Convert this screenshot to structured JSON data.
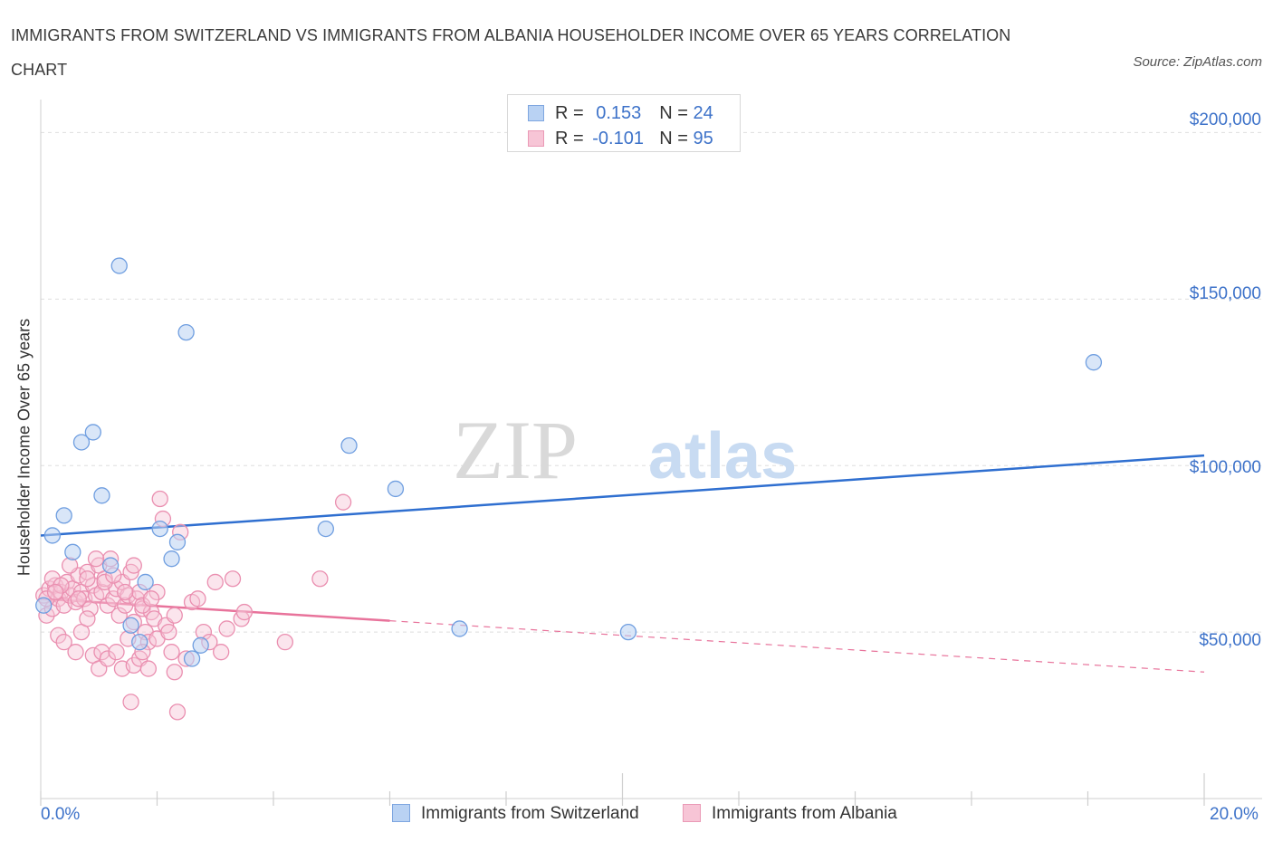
{
  "title": "IMMIGRANTS FROM SWITZERLAND VS IMMIGRANTS FROM ALBANIA HOUSEHOLDER INCOME OVER 65 YEARS CORRELATION CHART",
  "source": "Source: ZipAtlas.com",
  "watermark": {
    "zip": "ZIP",
    "atlas": "atlas"
  },
  "colors": {
    "blue": "#3d72c9",
    "blue_fill": "#b9d2f3",
    "blue_line": "#2f6fd0",
    "pink_line": "#e8739b",
    "pink_fill": "#f7c5d6",
    "grid": "#dddddd"
  },
  "legend": {
    "rows": [
      {
        "r_label": "R =",
        "r_value": "0.153",
        "n_label": "N =",
        "n_value": "24"
      },
      {
        "r_label": "R =",
        "r_value": "-0.101",
        "n_label": "N =",
        "n_value": "95"
      }
    ]
  },
  "bottom_legend": [
    "Immigrants from Switzerland",
    "Immigrants from Albania"
  ],
  "chart_data": {
    "type": "scatter",
    "title": "IMMIGRANTS FROM SWITZERLAND VS IMMIGRANTS FROM ALBANIA HOUSEHOLDER INCOME OVER 65 YEARS CORRELATION CHART",
    "xlabel": "",
    "ylabel": "Householder Income Over 65 years",
    "xlim": [
      0,
      20
    ],
    "ylim": [
      0,
      200000
    ],
    "x_tick_labels": [
      "0.0%",
      "20.0%"
    ],
    "y_ticks": [
      50000,
      100000,
      150000,
      200000
    ],
    "y_tick_labels": [
      "$50,000",
      "$100,000",
      "$150,000",
      "$200,000"
    ],
    "series": [
      {
        "name": "Immigrants from Switzerland",
        "points": [
          [
            0.05,
            58000
          ],
          [
            0.2,
            79000
          ],
          [
            0.4,
            85000
          ],
          [
            0.55,
            74000
          ],
          [
            0.7,
            107000
          ],
          [
            0.9,
            110000
          ],
          [
            1.05,
            91000
          ],
          [
            1.2,
            70000
          ],
          [
            1.35,
            160000
          ],
          [
            1.55,
            52000
          ],
          [
            1.7,
            47000
          ],
          [
            1.8,
            65000
          ],
          [
            2.05,
            81000
          ],
          [
            2.25,
            72000
          ],
          [
            2.35,
            77000
          ],
          [
            2.5,
            140000
          ],
          [
            2.6,
            42000
          ],
          [
            2.75,
            46000
          ],
          [
            4.9,
            81000
          ],
          [
            5.3,
            106000
          ],
          [
            6.1,
            93000
          ],
          [
            7.2,
            51000
          ],
          [
            10.1,
            50000
          ],
          [
            18.1,
            131000
          ]
        ],
        "trend": {
          "x": [
            0,
            20
          ],
          "y": [
            79000,
            103000
          ],
          "dashed_from": null
        }
      },
      {
        "name": "Immigrants from Albania",
        "points": [
          [
            0.05,
            61000
          ],
          [
            0.1,
            55000
          ],
          [
            0.15,
            63000
          ],
          [
            0.2,
            57000
          ],
          [
            0.25,
            64000
          ],
          [
            0.3,
            60000
          ],
          [
            0.35,
            62000
          ],
          [
            0.4,
            58000
          ],
          [
            0.45,
            65000
          ],
          [
            0.5,
            61000
          ],
          [
            0.55,
            63000
          ],
          [
            0.6,
            59000
          ],
          [
            0.65,
            67000
          ],
          [
            0.7,
            62000
          ],
          [
            0.75,
            60000
          ],
          [
            0.8,
            68000
          ],
          [
            0.85,
            57000
          ],
          [
            0.9,
            64000
          ],
          [
            0.95,
            61000
          ],
          [
            1.0,
            70000
          ],
          [
            1.05,
            62000
          ],
          [
            1.1,
            66000
          ],
          [
            1.15,
            58000
          ],
          [
            1.2,
            72000
          ],
          [
            1.25,
            60000
          ],
          [
            1.3,
            63000
          ],
          [
            1.35,
            55000
          ],
          [
            1.4,
            65000
          ],
          [
            1.45,
            58000
          ],
          [
            1.5,
            61000
          ],
          [
            1.55,
            68000
          ],
          [
            1.6,
            53000
          ],
          [
            1.65,
            60000
          ],
          [
            1.7,
            62000
          ],
          [
            1.75,
            57000
          ],
          [
            1.8,
            50000
          ],
          [
            1.85,
            47000
          ],
          [
            1.9,
            56000
          ],
          [
            1.95,
            54000
          ],
          [
            2.0,
            48000
          ],
          [
            2.05,
            90000
          ],
          [
            2.1,
            84000
          ],
          [
            2.15,
            52000
          ],
          [
            2.2,
            50000
          ],
          [
            2.25,
            44000
          ],
          [
            2.3,
            55000
          ],
          [
            2.35,
            26000
          ],
          [
            2.4,
            80000
          ],
          [
            2.5,
            42000
          ],
          [
            2.6,
            59000
          ],
          [
            2.7,
            60000
          ],
          [
            2.8,
            50000
          ],
          [
            2.9,
            47000
          ],
          [
            3.0,
            65000
          ],
          [
            3.1,
            44000
          ],
          [
            3.2,
            51000
          ],
          [
            3.3,
            66000
          ],
          [
            3.45,
            54000
          ],
          [
            3.5,
            56000
          ],
          [
            4.2,
            47000
          ],
          [
            4.8,
            66000
          ],
          [
            5.2,
            89000
          ],
          [
            0.3,
            49000
          ],
          [
            0.4,
            47000
          ],
          [
            0.6,
            44000
          ],
          [
            0.7,
            50000
          ],
          [
            0.8,
            54000
          ],
          [
            0.9,
            43000
          ],
          [
            1.0,
            39000
          ],
          [
            1.05,
            44000
          ],
          [
            1.15,
            42000
          ],
          [
            1.3,
            44000
          ],
          [
            1.4,
            39000
          ],
          [
            1.5,
            48000
          ],
          [
            1.55,
            29000
          ],
          [
            1.6,
            40000
          ],
          [
            1.7,
            42000
          ],
          [
            1.75,
            44000
          ],
          [
            1.85,
            39000
          ],
          [
            2.0,
            62000
          ],
          [
            2.3,
            38000
          ],
          [
            0.2,
            66000
          ],
          [
            0.35,
            64000
          ],
          [
            0.5,
            70000
          ],
          [
            0.65,
            60000
          ],
          [
            0.8,
            66000
          ],
          [
            0.95,
            72000
          ],
          [
            1.1,
            65000
          ],
          [
            1.25,
            67000
          ],
          [
            1.45,
            62000
          ],
          [
            1.6,
            70000
          ],
          [
            1.75,
            58000
          ],
          [
            1.9,
            60000
          ],
          [
            0.1,
            60000
          ],
          [
            0.25,
            62000
          ]
        ],
        "trend": {
          "x": [
            0,
            20
          ],
          "y": [
            60000,
            38000
          ],
          "dashed_from": 6.0
        }
      }
    ]
  }
}
